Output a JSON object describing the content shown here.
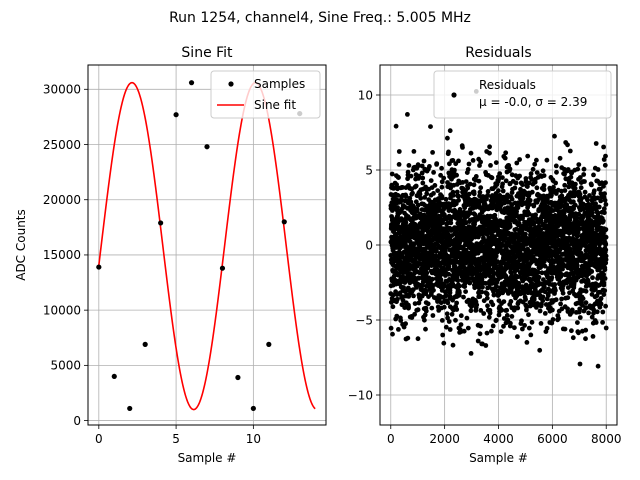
{
  "figure": {
    "title": "Run 1254, channel4, Sine Freq.: 5.005 MHz",
    "background": "#ffffff"
  },
  "chart_data": [
    {
      "type": "scatter",
      "title": "Sine Fit",
      "xlabel": "Sample #",
      "ylabel": "ADC Counts",
      "xlim": [
        -0.7,
        14.7
      ],
      "ylim": [
        -400,
        32200
      ],
      "xticks": [
        0,
        5,
        10
      ],
      "yticks": [
        0,
        5000,
        10000,
        15000,
        20000,
        25000,
        30000
      ],
      "grid": true,
      "legend_position": "top-right",
      "series": [
        {
          "name": "Samples",
          "style": "points",
          "color": "#000000",
          "x": [
            0,
            1,
            2,
            3,
            4,
            5,
            6,
            7,
            8,
            9,
            10,
            11,
            12,
            13
          ],
          "y": [
            13900,
            4000,
            1100,
            6900,
            17900,
            27700,
            30600,
            24800,
            13800,
            3900,
            1100,
            6900,
            18000,
            27800
          ]
        },
        {
          "name": "Sine fit",
          "style": "line",
          "color": "#ff0000",
          "function": "sine",
          "offset": 15800,
          "amplitude": 14800,
          "period": 7.986,
          "phase_zero_crossing": 0.15,
          "x_range": [
            0,
            14
          ]
        }
      ]
    },
    {
      "type": "scatter",
      "title": "Residuals",
      "xlabel": "Sample #",
      "ylabel": "",
      "xlim": [
        -400,
        8400
      ],
      "ylim": [
        -12,
        12
      ],
      "xticks": [
        0,
        2000,
        4000,
        6000,
        8000
      ],
      "yticks": [
        -10,
        -5,
        0,
        5,
        10
      ],
      "grid": true,
      "legend_position": "top-right",
      "series": [
        {
          "name": "Residuals",
          "style": "points",
          "color": "#000000",
          "n_points": 8000,
          "x_range": [
            0,
            8000
          ],
          "mean": 0.0,
          "std": 2.39
        }
      ],
      "legend_stats": "μ = -0.0, σ = 2.39"
    }
  ]
}
